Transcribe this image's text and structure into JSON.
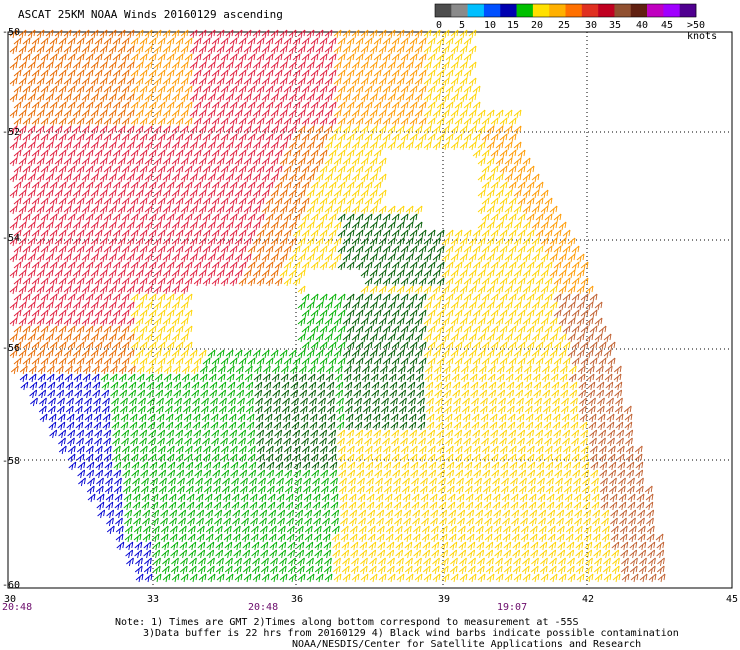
{
  "title": "ASCAT 25KM NOAA Winds 20160129 ascending",
  "legend": {
    "swatches": [
      "#4d4d4d",
      "#8a8a8a",
      "#00bfff",
      "#0050ff",
      "#0000b0",
      "#00c000",
      "#ffe000",
      "#ffb000",
      "#ff7000",
      "#e03020",
      "#c00020",
      "#905030",
      "#602010",
      "#c000c0",
      "#a000ff",
      "#500090"
    ],
    "labels": [
      "0",
      "5",
      "10",
      "15",
      "20",
      "25",
      "30",
      "35",
      "40",
      "45",
      ">50 knots"
    ]
  },
  "lat_labels": [
    "-50",
    "-52",
    "-54",
    "-56",
    "-58",
    "-60"
  ],
  "lon_labels": [
    "30",
    "33",
    "36",
    "39",
    "42",
    "45"
  ],
  "time_labels": [
    "20:48",
    "20:48",
    "19:07"
  ],
  "notes": [
    "Note: 1) Times are GMT 2)Times along bottom correspond to measurement at -55S",
    "3)Data buffer is 22 hrs from 20160129 4) Black wind barbs indicate possible contamination",
    "NOAA/NESDIS/Center for Satellite Applications and Research"
  ],
  "barb_colors": {
    "blue": "#0000d0",
    "green": "#00b000",
    "dark_green": "#005a00",
    "yellow": "#ffd400",
    "orange": "#ff9a00",
    "dark_orange": "#e86a00",
    "red": "#e02040",
    "brown": "#c06030"
  }
}
